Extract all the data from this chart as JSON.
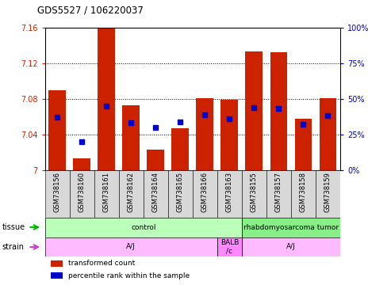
{
  "title": "GDS5527 / 106220037",
  "samples": [
    "GSM738156",
    "GSM738160",
    "GSM738161",
    "GSM738162",
    "GSM738164",
    "GSM738165",
    "GSM738166",
    "GSM738163",
    "GSM738155",
    "GSM738157",
    "GSM738158",
    "GSM738159"
  ],
  "bar_values": [
    7.09,
    7.013,
    7.16,
    7.073,
    7.023,
    7.047,
    7.081,
    7.079,
    7.133,
    7.132,
    7.058,
    7.081
  ],
  "percentile_values": [
    37,
    20,
    45,
    33,
    30,
    34,
    39,
    36,
    44,
    43,
    32,
    38
  ],
  "ymin": 7.0,
  "ymax": 7.16,
  "yticks": [
    7.0,
    7.04,
    7.08,
    7.12,
    7.16
  ],
  "ytick_labels": [
    "7",
    "7.04",
    "7.08",
    "7.12",
    "7.16"
  ],
  "y2min": 0,
  "y2max": 100,
  "y2ticks": [
    0,
    25,
    50,
    75,
    100
  ],
  "y2tick_labels": [
    "0%",
    "25%",
    "50%",
    "75%",
    "100%"
  ],
  "bar_color": "#cc2200",
  "percentile_color": "#0000cc",
  "tissue_groups": [
    {
      "label": "control",
      "start": 0,
      "end": 8,
      "color": "#bbffbb"
    },
    {
      "label": "rhabdomyosarcoma tumor",
      "start": 8,
      "end": 12,
      "color": "#88ee88"
    }
  ],
  "strain_groups": [
    {
      "label": "A/J",
      "start": 0,
      "end": 7,
      "color": "#ffbbff"
    },
    {
      "label": "BALB\n/c",
      "start": 7,
      "end": 8,
      "color": "#ff88ff"
    },
    {
      "label": "A/J",
      "start": 8,
      "end": 12,
      "color": "#ffbbff"
    }
  ],
  "legend_items": [
    {
      "label": "transformed count",
      "color": "#cc2200"
    },
    {
      "label": "percentile rank within the sample",
      "color": "#0000cc"
    }
  ],
  "tick_label_color_left": "#cc2200",
  "tick_label_color_right": "#0000cc",
  "xtick_bg_color": "#d8d8d8",
  "arrow_color": "#00bb00"
}
